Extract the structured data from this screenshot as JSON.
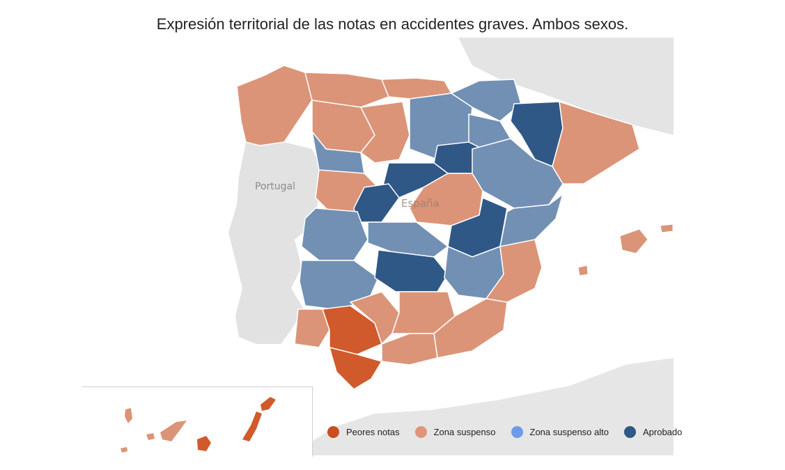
{
  "title": "Expresión territorial de las notas en accidentes graves. Ambos sexos.",
  "map_labels": {
    "portugal": "Portugal",
    "espana": "España"
  },
  "legend": [
    {
      "label": "Peores notas",
      "color": "#c84f22"
    },
    {
      "label": "Zona suspenso",
      "color": "#e0957a"
    },
    {
      "label": "Zona suspenso alto",
      "color": "#6e9be8"
    },
    {
      "label": "Aprobado",
      "color": "#2f5887"
    }
  ],
  "colors": {
    "peores": "#d05a2c",
    "suspenso": "#db9478",
    "suspenso_alto": "#7290b4",
    "aprobado": "#2f5887",
    "land": "#e3e3e3",
    "sea": "#ffffff"
  }
}
